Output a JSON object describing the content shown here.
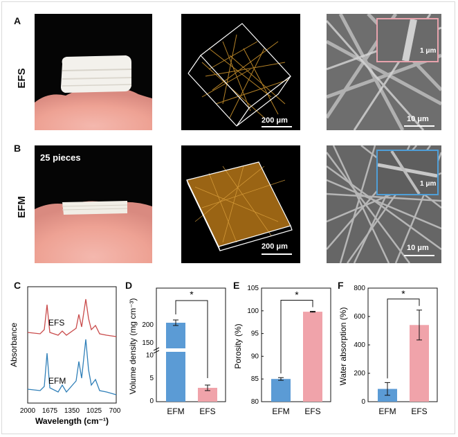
{
  "panels": {
    "A": "A",
    "B": "B",
    "C": "C",
    "D": "D",
    "E": "E",
    "F": "F"
  },
  "row_labels": {
    "top": "EFS",
    "bottom": "EFM"
  },
  "images": {
    "efs_photo": {
      "kind": "photo of EFS sample on pink fur"
    },
    "efs_confocal": {
      "scale": "200 μm"
    },
    "efs_sem": {
      "scale": "10 μm",
      "inset_scale": "1 μm",
      "inset_color": "#e8a3ad"
    },
    "efm_photo": {
      "caption": "25 pieces"
    },
    "efm_confocal": {
      "scale": "200 μm"
    },
    "efm_sem": {
      "scale": "10 μm",
      "inset_scale": "1 μm",
      "inset_color": "#4f9fd8"
    }
  },
  "colors": {
    "efm": "#5b9bd5",
    "efs": "#f0a3aa",
    "efs_line": "#c94a4a",
    "efm_line": "#2f7fb8"
  },
  "chart_data": [
    {
      "panel": "C",
      "type": "line",
      "xlabel": "Wavelength (cm⁻¹)",
      "ylabel": "Absorbance",
      "xticks": [
        "2000",
        "1675",
        "1350",
        "1025",
        "700"
      ],
      "xlim": [
        2000,
        700
      ],
      "series": [
        {
          "name": "EFS",
          "color": "#c94a4a"
        },
        {
          "name": "EFM",
          "color": "#2f7fb8"
        }
      ]
    },
    {
      "panel": "D",
      "type": "bar",
      "categories": [
        "EFM",
        "EFS"
      ],
      "values": [
        190,
        3
      ],
      "errors": [
        5,
        0.6
      ],
      "ylabel": "Volume density (mg cm⁻³)",
      "yticks_upper": [
        "150",
        "200"
      ],
      "yticks_lower": [
        "0",
        "5",
        "10"
      ],
      "significance": "*"
    },
    {
      "panel": "E",
      "type": "bar",
      "categories": [
        "EFM",
        "EFS"
      ],
      "values": [
        85.0,
        99.8
      ],
      "errors": [
        0.3,
        0.1
      ],
      "ylabel": "Porosity (%)",
      "ylim": [
        80,
        105
      ],
      "yticks": [
        "80",
        "85",
        "90",
        "95",
        "100",
        "105"
      ],
      "significance": "*"
    },
    {
      "panel": "F",
      "type": "bar",
      "categories": [
        "EFM",
        "EFS"
      ],
      "values": [
        90,
        540
      ],
      "errors": [
        45,
        105
      ],
      "ylabel": "Water absorption (%)",
      "ylim": [
        0,
        800
      ],
      "yticks": [
        "0",
        "200",
        "400",
        "600",
        "800"
      ],
      "significance": "*"
    }
  ]
}
